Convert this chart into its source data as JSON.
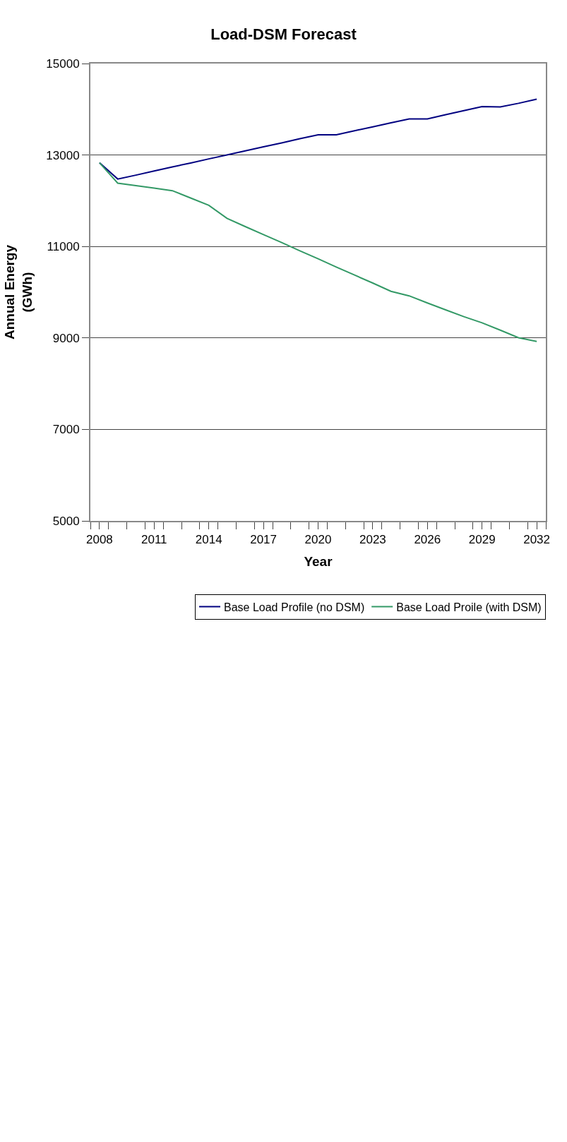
{
  "chart_data": {
    "type": "line",
    "title": "Load-DSM Forecast",
    "xlabel": "Year",
    "ylabel": "Annual Energy\n(GWh)",
    "x": [
      2008,
      2009,
      2010,
      2011,
      2012,
      2013,
      2014,
      2015,
      2016,
      2017,
      2018,
      2019,
      2020,
      2021,
      2022,
      2023,
      2024,
      2025,
      2026,
      2027,
      2028,
      2029,
      2030,
      2031,
      2032
    ],
    "series": [
      {
        "name": "Base Load Profile (no DSM)",
        "color": "#000080",
        "values": [
          12830,
          12475,
          12560,
          12650,
          12740,
          12825,
          12915,
          13000,
          13090,
          13180,
          13265,
          13355,
          13440,
          13440,
          13530,
          13615,
          13705,
          13790,
          13790,
          13880,
          13970,
          14060,
          14050,
          14130,
          14220
        ]
      },
      {
        "name": "Base Load Proile (with DSM)",
        "color": "#339966",
        "values": [
          12830,
          12385,
          12330,
          12275,
          12220,
          12060,
          11900,
          11615,
          11435,
          11260,
          11085,
          10905,
          10730,
          10550,
          10375,
          10200,
          10020,
          9920,
          9765,
          9615,
          9465,
          9330,
          9170,
          9005,
          8925
        ]
      }
    ],
    "xlim": [
      2007.5,
      2032.5
    ],
    "xticks": [
      {
        "value": 2007.5,
        "label": null
      },
      2008,
      {
        "value": 2008.5,
        "label": null
      },
      {
        "value": 2009.5,
        "label": null
      },
      {
        "value": 2010.5,
        "label": null
      },
      2011,
      {
        "value": 2011.5,
        "label": null
      },
      {
        "value": 2012.5,
        "label": null
      },
      {
        "value": 2013.5,
        "label": null
      },
      2014,
      {
        "value": 2014.5,
        "label": null
      },
      {
        "value": 2015.5,
        "label": null
      },
      {
        "value": 2016.5,
        "label": null
      },
      2017,
      {
        "value": 2017.5,
        "label": null
      },
      {
        "value": 2018.5,
        "label": null
      },
      {
        "value": 2019.5,
        "label": null
      },
      2020,
      {
        "value": 2020.5,
        "label": null
      },
      {
        "value": 2021.5,
        "label": null
      },
      {
        "value": 2022.5,
        "label": null
      },
      2023,
      {
        "value": 2023.5,
        "label": null
      },
      {
        "value": 2024.5,
        "label": null
      },
      {
        "value": 2025.5,
        "label": null
      },
      2026,
      {
        "value": 2026.5,
        "label": null
      },
      {
        "value": 2027.5,
        "label": null
      },
      {
        "value": 2028.5,
        "label": null
      },
      2029,
      {
        "value": 2029.5,
        "label": null
      },
      {
        "value": 2030.5,
        "label": null
      },
      {
        "value": 2031.5,
        "label": null
      },
      2032,
      {
        "value": 2032.5,
        "label": null
      }
    ],
    "ylim": [
      5000,
      15000
    ],
    "yticks": [
      5000,
      7000,
      9000,
      11000,
      13000,
      15000
    ],
    "grid": "y",
    "legend": "bottom right",
    "marker": "none",
    "line_style": "solid"
  }
}
